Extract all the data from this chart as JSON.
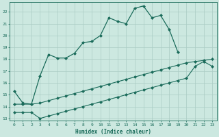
{
  "bg_color": "#cce8e0",
  "line_color": "#1a6b5a",
  "grid_color": "#aaccc4",
  "xlabel": "Humidex (Indice chaleur)",
  "xlim": [
    -0.5,
    23.5
  ],
  "ylim": [
    12.8,
    22.8
  ],
  "yticks": [
    13,
    14,
    15,
    16,
    17,
    18,
    19,
    20,
    21,
    22
  ],
  "xticks": [
    0,
    1,
    2,
    3,
    4,
    5,
    6,
    7,
    8,
    9,
    10,
    11,
    12,
    13,
    14,
    15,
    16,
    17,
    18,
    19,
    20,
    21,
    22,
    23
  ],
  "line1_x": [
    0,
    1,
    2,
    3,
    4,
    5,
    6,
    7,
    8,
    9,
    10,
    11,
    12,
    13,
    14,
    15,
    16,
    17,
    18,
    19
  ],
  "line1_y": [
    15.3,
    14.3,
    14.2,
    16.6,
    18.4,
    18.1,
    18.1,
    18.5,
    19.4,
    19.5,
    20.0,
    21.5,
    21.2,
    21.0,
    22.3,
    22.5,
    21.5,
    21.7,
    20.5,
    18.6
  ],
  "line2_x": [
    0,
    1,
    2,
    3,
    4,
    5,
    6,
    7,
    8,
    9,
    10,
    11,
    12,
    13,
    14,
    15,
    16,
    17,
    18,
    19,
    20,
    21,
    22,
    23
  ],
  "line2_y": [
    14.2,
    14.2,
    14.2,
    14.3,
    14.5,
    14.7,
    14.9,
    15.1,
    15.3,
    15.5,
    15.7,
    15.9,
    16.1,
    16.3,
    16.5,
    16.7,
    16.9,
    17.1,
    17.3,
    17.5,
    17.7,
    17.8,
    17.9,
    18.0
  ],
  "line3_x": [
    0,
    1,
    2,
    3,
    4,
    5,
    6,
    7,
    8,
    9,
    10,
    11,
    12,
    13,
    14,
    15,
    16,
    17,
    18,
    19,
    20,
    21,
    22,
    23
  ],
  "line3_y": [
    13.5,
    13.5,
    13.5,
    13.0,
    13.2,
    13.4,
    13.6,
    13.8,
    14.0,
    14.2,
    14.4,
    14.6,
    14.8,
    15.0,
    15.2,
    15.4,
    15.6,
    15.8,
    16.0,
    16.2,
    16.4,
    17.4,
    17.8,
    17.4
  ]
}
